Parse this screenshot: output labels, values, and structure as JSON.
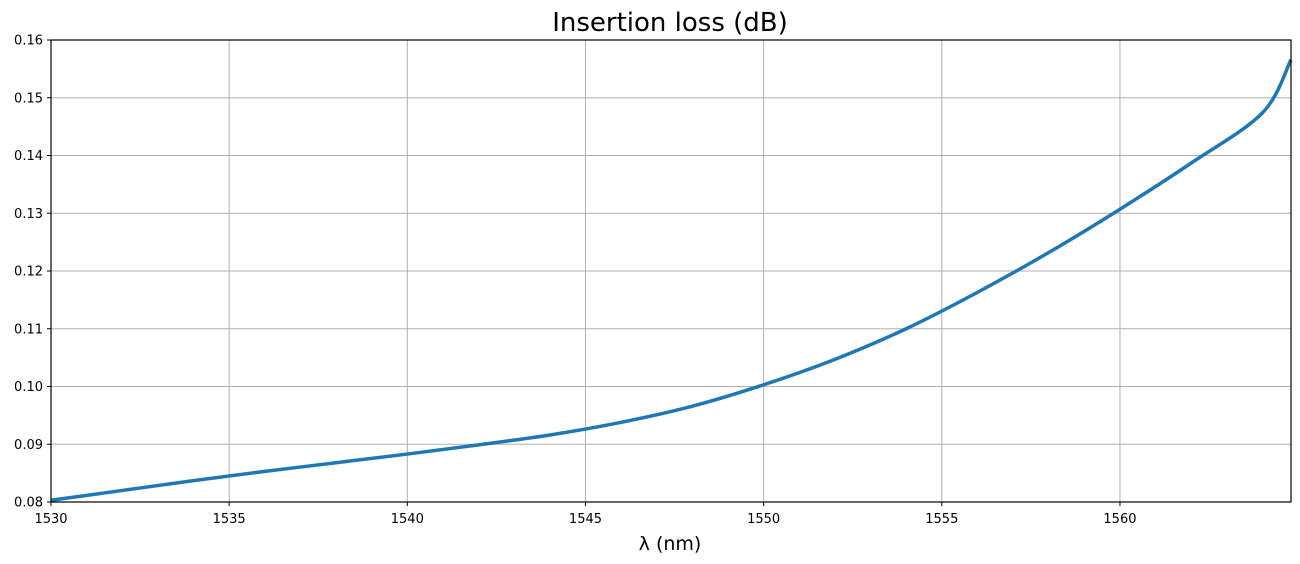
{
  "chart_data": {
    "type": "line",
    "title": "Insertion loss (dB)",
    "xlabel": "λ (nm)",
    "ylabel": "",
    "xlim": [
      1530,
      1564.8
    ],
    "ylim": [
      0.08,
      0.16
    ],
    "xticks": [
      1530,
      1535,
      1540,
      1545,
      1550,
      1555,
      1560
    ],
    "yticks": [
      0.08,
      0.09,
      0.1,
      0.11,
      0.12,
      0.13,
      0.14,
      0.15,
      0.16
    ],
    "grid": true,
    "line_color": "#1f77b4",
    "series": [
      {
        "x": [
          1530,
          1532,
          1534,
          1536,
          1538,
          1540,
          1542,
          1544,
          1546,
          1548,
          1550,
          1552,
          1554,
          1556,
          1558,
          1560,
          1562,
          1564,
          1564.8
        ],
        "y": [
          0.0803,
          0.082,
          0.0837,
          0.0853,
          0.0868,
          0.0883,
          0.0899,
          0.0916,
          0.0938,
          0.0966,
          0.1003,
          0.1047,
          0.11,
          0.1163,
          0.1232,
          0.1307,
          0.1387,
          0.1474,
          0.1566
        ]
      }
    ]
  }
}
